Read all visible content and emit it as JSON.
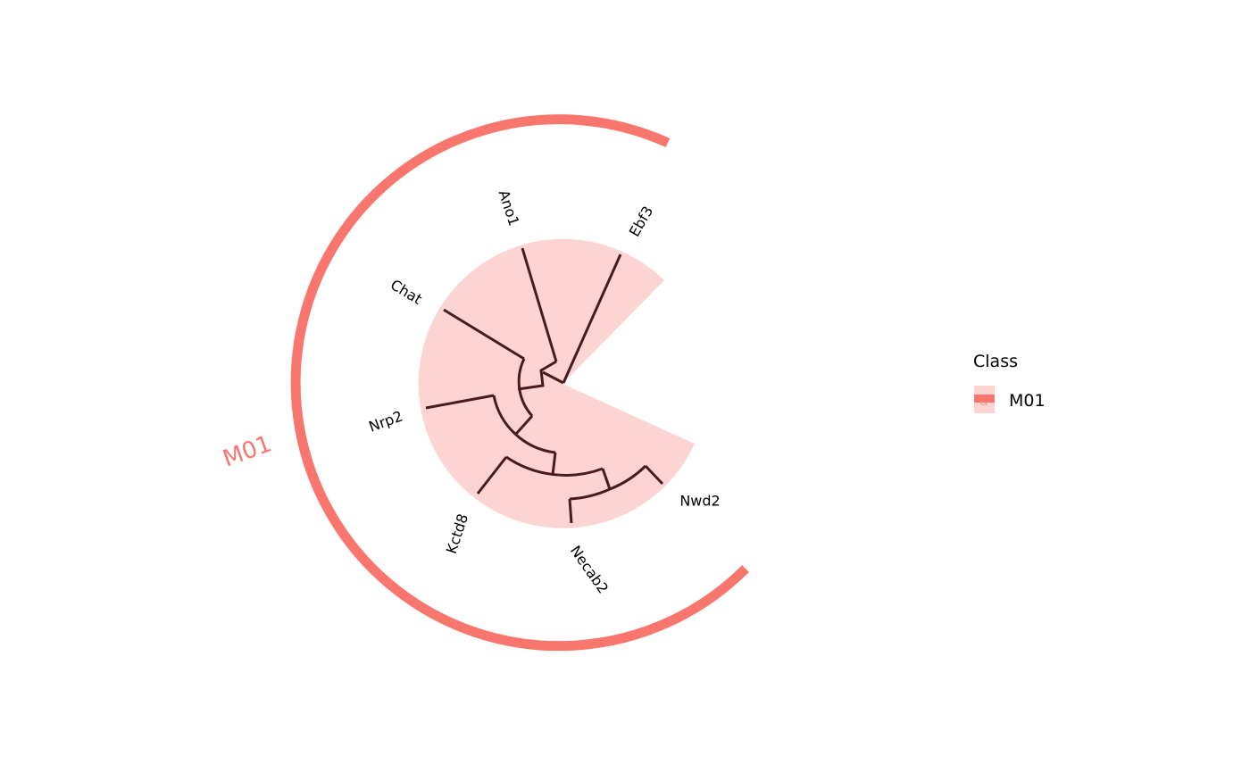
{
  "diagram": {
    "type": "circular-dendrogram",
    "tips": [
      "Ebf3",
      "Ano1",
      "Chat",
      "Nrp2",
      "Kctd8",
      "Necab2",
      "Nwd2"
    ],
    "clade": {
      "label": "M01",
      "members": [
        "Ebf3",
        "Ano1",
        "Chat",
        "Nrp2",
        "Kctd8",
        "Necab2",
        "Nwd2"
      ]
    }
  },
  "legend": {
    "title": "Class",
    "items": [
      {
        "label": "M01",
        "key_glyph": "a"
      }
    ]
  },
  "colors": {
    "highlight_fill": "#fcd5d3",
    "clade_bar": "#f8766d",
    "clade_text": "#f8766d",
    "branch": "#4a1a1c",
    "tip_text": "#000000"
  }
}
